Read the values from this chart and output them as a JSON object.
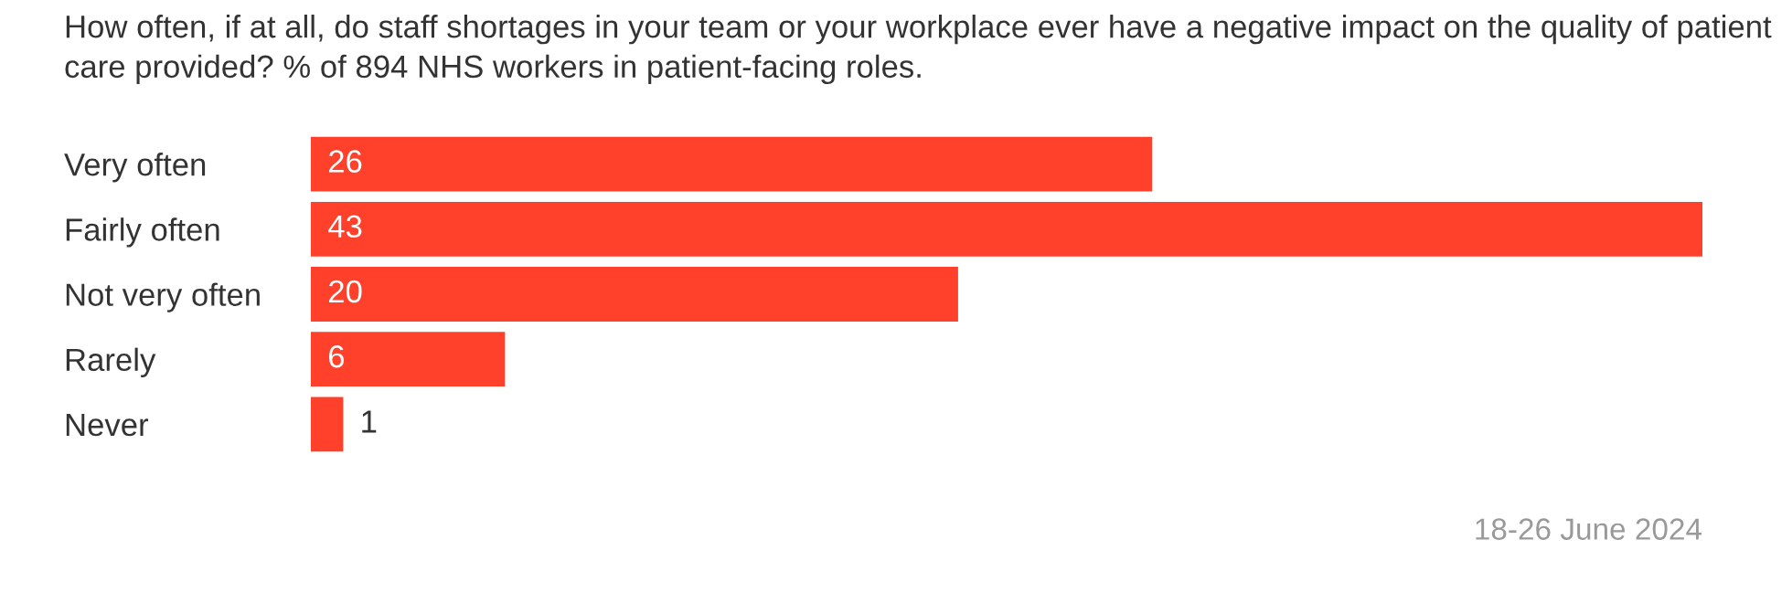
{
  "chart_data": {
    "type": "bar",
    "orientation": "horizontal",
    "title": "How often, if at all, do staff shortages in your team or your workplace ever have a negative impact on the quality of patient care provided? % of 894 NHS workers in patient-facing roles.",
    "categories": [
      "Very often",
      "Fairly often",
      "Not very often",
      "Rarely",
      "Never"
    ],
    "values": [
      26,
      43,
      20,
      6,
      1
    ],
    "color": "#ff412c",
    "data_labels": true,
    "grid": false,
    "legend": false,
    "tick_labels": "y",
    "annotations": [
      "18-26 June 2024"
    ]
  }
}
